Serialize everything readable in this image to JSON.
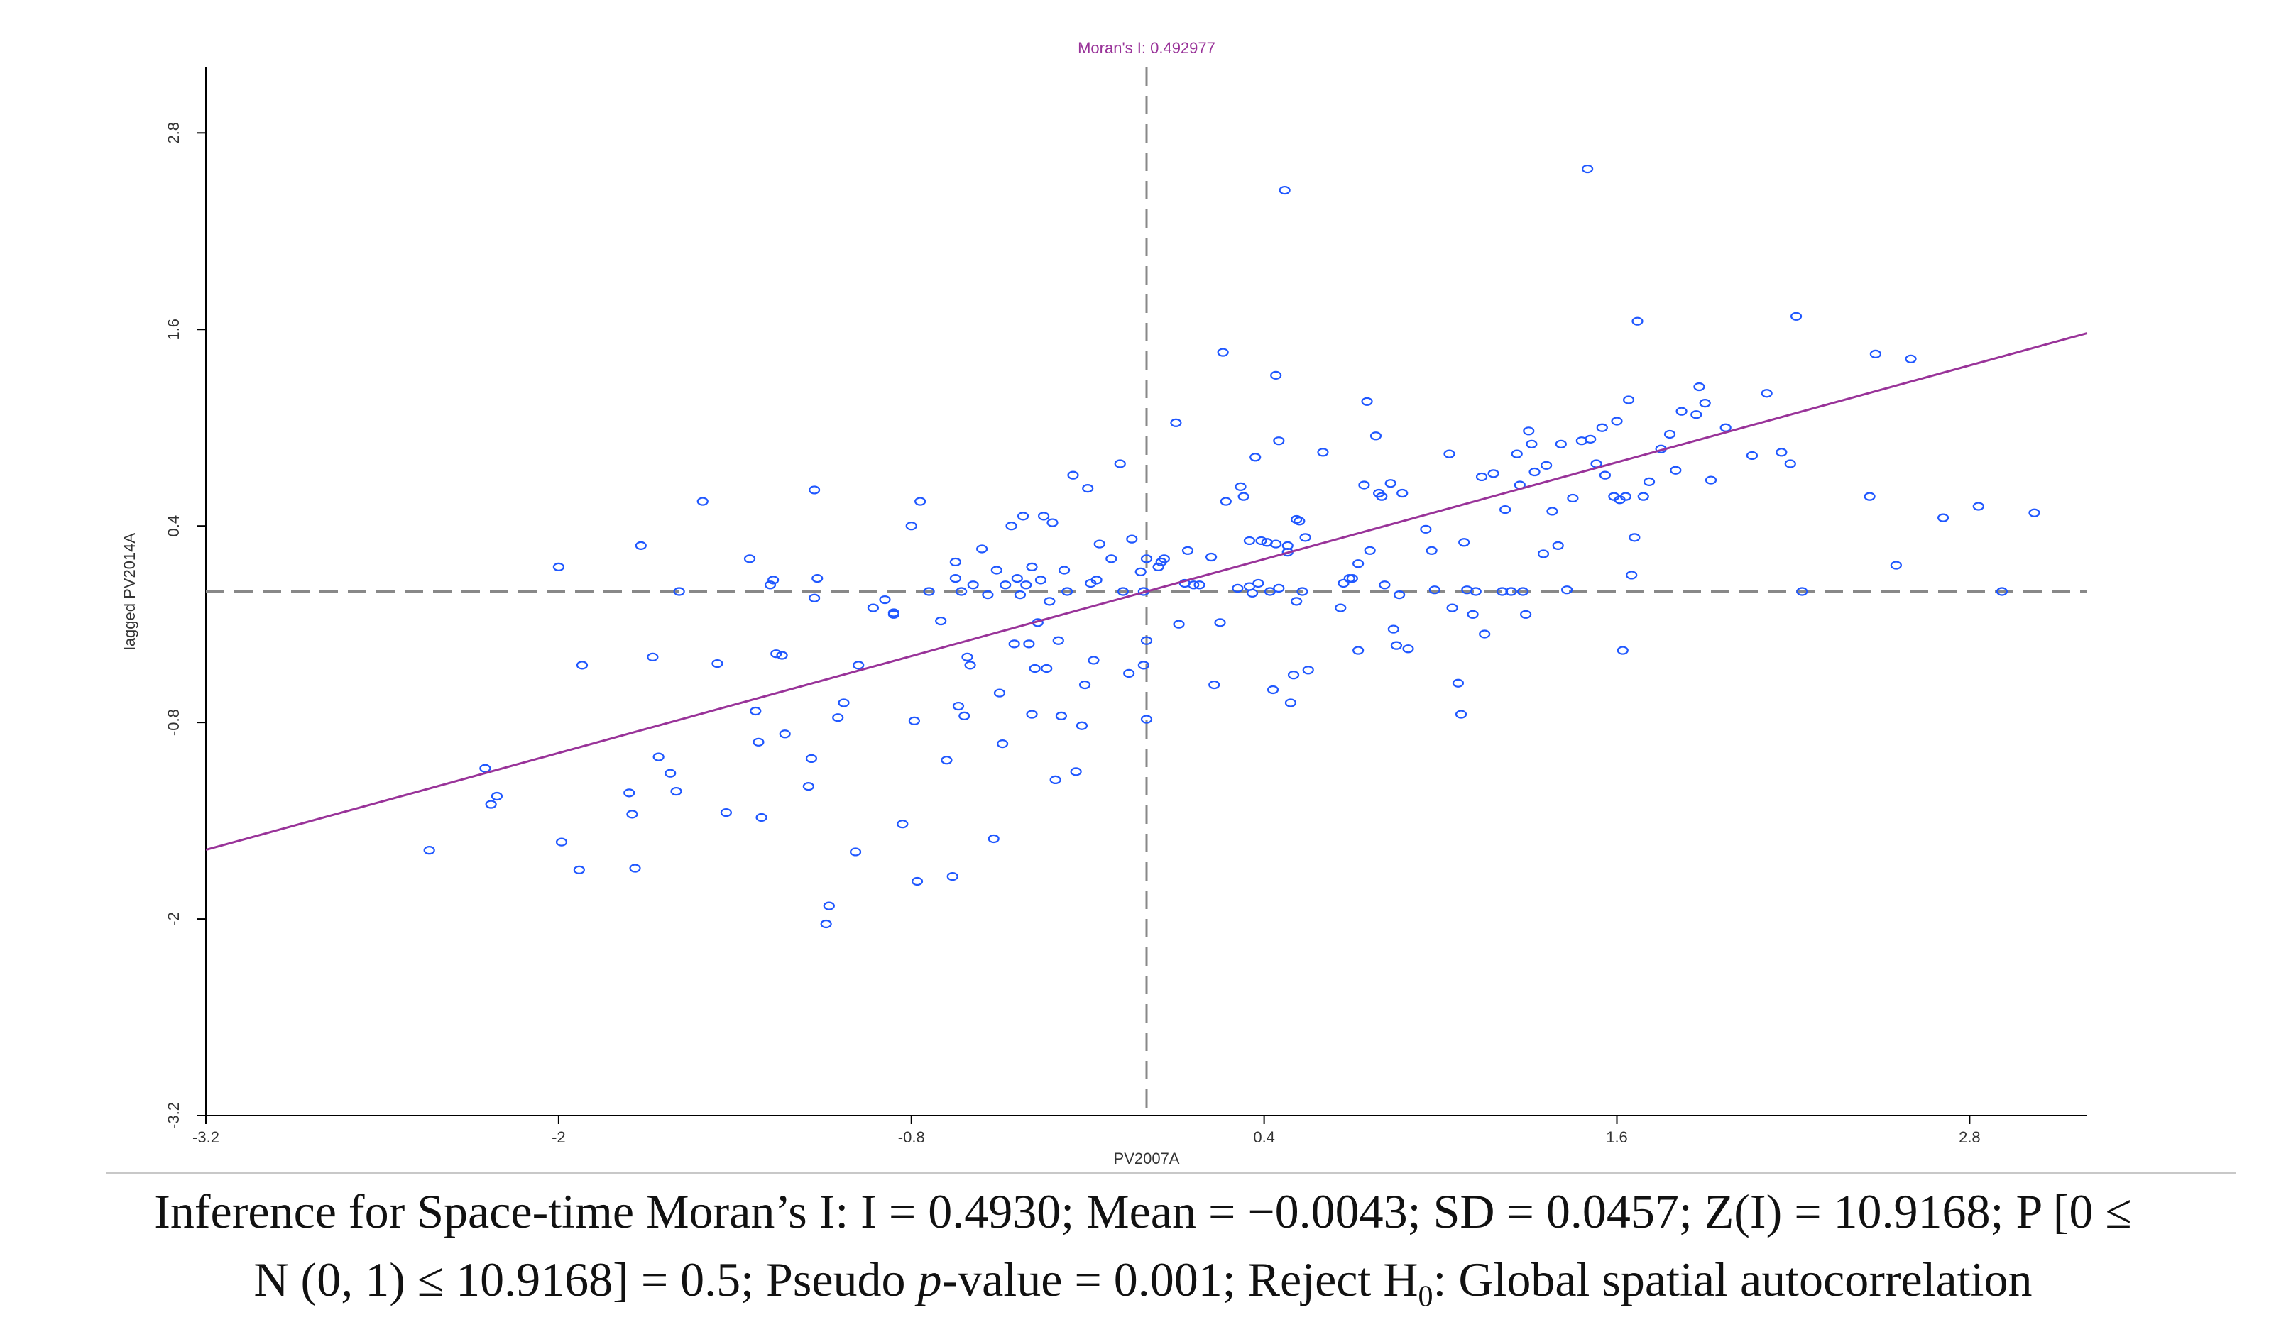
{
  "chart_data": {
    "type": "scatter",
    "title": "Moran's I: 0.492977",
    "xlabel": "PV2007A",
    "ylabel": "lagged PV2014A",
    "xlim": [
      -3.2,
      3.2
    ],
    "ylim": [
      -3.2,
      3.2
    ],
    "x_ticks": [
      "-3.2",
      "-2",
      "-0.8",
      "0.4",
      "1.6",
      "2.8"
    ],
    "y_ticks": [
      "-3.2",
      "-2",
      "-0.8",
      "0.4",
      "1.6",
      "2.8"
    ],
    "mean_x": 0.0,
    "mean_y": 0.0,
    "regression": {
      "slope": 0.493,
      "intercept": 0.0
    },
    "colors": {
      "points": "#1f57ff",
      "line": "#993399",
      "guides": "#888888",
      "axes": "#000000"
    },
    "points": [
      [
        -2.44,
        -1.58
      ],
      [
        -2.25,
        -1.08
      ],
      [
        -2.23,
        -1.3
      ],
      [
        -2.21,
        -1.25
      ],
      [
        -2.0,
        0.15
      ],
      [
        -1.99,
        -1.53
      ],
      [
        -1.93,
        -1.7
      ],
      [
        -1.92,
        -0.45
      ],
      [
        -1.76,
        -1.23
      ],
      [
        -1.75,
        -1.36
      ],
      [
        -1.74,
        -1.69
      ],
      [
        -1.72,
        0.28
      ],
      [
        -1.68,
        -0.4
      ],
      [
        -1.66,
        -1.01
      ],
      [
        -1.62,
        -1.11
      ],
      [
        -1.6,
        -1.22
      ],
      [
        -1.59,
        0.0
      ],
      [
        -1.51,
        0.55
      ],
      [
        -1.46,
        -0.44
      ],
      [
        -1.43,
        -1.35
      ],
      [
        -1.35,
        0.2
      ],
      [
        -1.33,
        -0.73
      ],
      [
        -1.32,
        -0.92
      ],
      [
        -1.31,
        -1.38
      ],
      [
        -1.28,
        0.04
      ],
      [
        -1.27,
        0.07
      ],
      [
        -1.26,
        -0.38
      ],
      [
        -1.24,
        -0.39
      ],
      [
        -1.23,
        -0.87
      ],
      [
        -1.15,
        -1.19
      ],
      [
        -1.14,
        -1.02
      ],
      [
        -1.13,
        0.62
      ],
      [
        -1.13,
        -0.04
      ],
      [
        -1.12,
        0.08
      ],
      [
        -1.09,
        -2.03
      ],
      [
        -1.08,
        -1.92
      ],
      [
        -1.05,
        -0.77
      ],
      [
        -1.03,
        -0.68
      ],
      [
        -0.99,
        -1.59
      ],
      [
        -0.98,
        -0.45
      ],
      [
        -0.93,
        -0.1
      ],
      [
        -0.89,
        -0.05
      ],
      [
        -0.86,
        -0.14
      ],
      [
        -0.86,
        -0.13
      ],
      [
        -0.83,
        -1.42
      ],
      [
        -0.8,
        0.4
      ],
      [
        -0.79,
        -0.79
      ],
      [
        -0.78,
        -1.77
      ],
      [
        -0.77,
        0.55
      ],
      [
        -0.74,
        0.0
      ],
      [
        -0.7,
        -0.18
      ],
      [
        -0.68,
        -1.03
      ],
      [
        -0.66,
        -1.74
      ],
      [
        -0.65,
        0.18
      ],
      [
        -0.65,
        0.08
      ],
      [
        -0.64,
        -0.7
      ],
      [
        -0.63,
        0.0
      ],
      [
        -0.62,
        -0.76
      ],
      [
        -0.61,
        -0.4
      ],
      [
        -0.6,
        -0.45
      ],
      [
        -0.59,
        0.04
      ],
      [
        -0.56,
        0.26
      ],
      [
        -0.54,
        -0.02
      ],
      [
        -0.52,
        -1.51
      ],
      [
        -0.51,
        0.13
      ],
      [
        -0.5,
        -0.62
      ],
      [
        -0.49,
        -0.93
      ],
      [
        -0.48,
        0.04
      ],
      [
        -0.46,
        0.4
      ],
      [
        -0.45,
        -0.32
      ],
      [
        -0.44,
        0.08
      ],
      [
        -0.43,
        -0.02
      ],
      [
        -0.42,
        0.46
      ],
      [
        -0.41,
        0.04
      ],
      [
        -0.4,
        -0.32
      ],
      [
        -0.39,
        -0.75
      ],
      [
        -0.39,
        0.15
      ],
      [
        -0.38,
        -0.47
      ],
      [
        -0.37,
        -0.19
      ],
      [
        -0.36,
        0.07
      ],
      [
        -0.35,
        0.46
      ],
      [
        -0.34,
        -0.47
      ],
      [
        -0.33,
        -0.06
      ],
      [
        -0.32,
        0.42
      ],
      [
        -0.31,
        -1.15
      ],
      [
        -0.3,
        -0.3
      ],
      [
        -0.29,
        -0.76
      ],
      [
        -0.28,
        0.13
      ],
      [
        -0.27,
        0.0
      ],
      [
        -0.25,
        0.71
      ],
      [
        -0.24,
        -1.1
      ],
      [
        -0.22,
        -0.82
      ],
      [
        -0.21,
        -0.57
      ],
      [
        -0.2,
        0.63
      ],
      [
        -0.19,
        0.05
      ],
      [
        -0.18,
        -0.42
      ],
      [
        -0.17,
        0.07
      ],
      [
        -0.16,
        0.29
      ],
      [
        -0.12,
        0.2
      ],
      [
        -0.09,
        0.78
      ],
      [
        -0.08,
        0.0
      ],
      [
        -0.06,
        -0.5
      ],
      [
        -0.05,
        0.32
      ],
      [
        -0.02,
        0.12
      ],
      [
        -0.01,
        0.0
      ],
      [
        -0.01,
        -0.45
      ],
      [
        0.0,
        0.2
      ],
      [
        0.0,
        -0.3
      ],
      [
        0.0,
        -0.78
      ],
      [
        0.04,
        0.15
      ],
      [
        0.05,
        0.18
      ],
      [
        0.06,
        0.2
      ],
      [
        0.1,
        1.03
      ],
      [
        0.11,
        -0.2
      ],
      [
        0.13,
        0.05
      ],
      [
        0.14,
        0.25
      ],
      [
        0.16,
        0.04
      ],
      [
        0.18,
        0.04
      ],
      [
        0.22,
        0.21
      ],
      [
        0.23,
        -0.57
      ],
      [
        0.25,
        -0.19
      ],
      [
        0.26,
        1.46
      ],
      [
        0.27,
        0.55
      ],
      [
        0.31,
        0.02
      ],
      [
        0.32,
        0.64
      ],
      [
        0.33,
        0.58
      ],
      [
        0.35,
        0.03
      ],
      [
        0.35,
        0.31
      ],
      [
        0.36,
        -0.01
      ],
      [
        0.37,
        0.82
      ],
      [
        0.38,
        0.05
      ],
      [
        0.39,
        0.31
      ],
      [
        0.41,
        0.3
      ],
      [
        0.42,
        0.0
      ],
      [
        0.43,
        -0.6
      ],
      [
        0.44,
        1.32
      ],
      [
        0.44,
        0.29
      ],
      [
        0.45,
        0.92
      ],
      [
        0.45,
        0.02
      ],
      [
        0.47,
        2.45
      ],
      [
        0.48,
        0.24
      ],
      [
        0.48,
        0.28
      ],
      [
        0.49,
        -0.68
      ],
      [
        0.5,
        -0.51
      ],
      [
        0.51,
        0.44
      ],
      [
        0.51,
        -0.06
      ],
      [
        0.52,
        0.43
      ],
      [
        0.53,
        0.0
      ],
      [
        0.54,
        0.33
      ],
      [
        0.55,
        -0.48
      ],
      [
        0.6,
        0.85
      ],
      [
        0.66,
        -0.1
      ],
      [
        0.67,
        0.05
      ],
      [
        0.69,
        0.08
      ],
      [
        0.7,
        0.08
      ],
      [
        0.72,
        0.17
      ],
      [
        0.72,
        -0.36
      ],
      [
        0.74,
        0.65
      ],
      [
        0.75,
        1.16
      ],
      [
        0.76,
        0.25
      ],
      [
        0.78,
        0.95
      ],
      [
        0.79,
        0.6
      ],
      [
        0.8,
        0.58
      ],
      [
        0.81,
        0.04
      ],
      [
        0.83,
        0.66
      ],
      [
        0.84,
        -0.23
      ],
      [
        0.85,
        -0.33
      ],
      [
        0.86,
        -0.02
      ],
      [
        0.87,
        0.6
      ],
      [
        0.89,
        -0.35
      ],
      [
        0.95,
        0.38
      ],
      [
        0.97,
        0.25
      ],
      [
        0.98,
        0.01
      ],
      [
        1.03,
        0.84
      ],
      [
        1.04,
        -0.1
      ],
      [
        1.06,
        -0.56
      ],
      [
        1.07,
        -0.75
      ],
      [
        1.08,
        0.3
      ],
      [
        1.09,
        0.01
      ],
      [
        1.11,
        -0.14
      ],
      [
        1.12,
        0.0
      ],
      [
        1.14,
        0.7
      ],
      [
        1.15,
        -0.26
      ],
      [
        1.18,
        0.72
      ],
      [
        1.21,
        0.0
      ],
      [
        1.22,
        0.5
      ],
      [
        1.24,
        0.0
      ],
      [
        1.26,
        0.84
      ],
      [
        1.27,
        0.65
      ],
      [
        1.28,
        0.0
      ],
      [
        1.29,
        -0.14
      ],
      [
        1.3,
        0.98
      ],
      [
        1.31,
        0.9
      ],
      [
        1.32,
        0.73
      ],
      [
        1.35,
        0.23
      ],
      [
        1.36,
        0.77
      ],
      [
        1.38,
        0.49
      ],
      [
        1.4,
        0.28
      ],
      [
        1.41,
        0.9
      ],
      [
        1.43,
        0.01
      ],
      [
        1.45,
        0.57
      ],
      [
        1.48,
        0.92
      ],
      [
        1.5,
        2.58
      ],
      [
        1.51,
        0.93
      ],
      [
        1.53,
        0.78
      ],
      [
        1.55,
        1.0
      ],
      [
        1.56,
        0.71
      ],
      [
        1.59,
        0.58
      ],
      [
        1.6,
        1.04
      ],
      [
        1.61,
        0.56
      ],
      [
        1.62,
        -0.36
      ],
      [
        1.63,
        0.58
      ],
      [
        1.64,
        1.17
      ],
      [
        1.65,
        0.1
      ],
      [
        1.66,
        0.33
      ],
      [
        1.67,
        1.65
      ],
      [
        1.69,
        0.58
      ],
      [
        1.71,
        0.67
      ],
      [
        1.75,
        0.87
      ],
      [
        1.78,
        0.96
      ],
      [
        1.8,
        0.74
      ],
      [
        1.82,
        1.1
      ],
      [
        1.87,
        1.08
      ],
      [
        1.88,
        1.25
      ],
      [
        1.9,
        1.15
      ],
      [
        1.92,
        0.68
      ],
      [
        1.97,
        1.0
      ],
      [
        2.06,
        0.83
      ],
      [
        2.11,
        1.21
      ],
      [
        2.16,
        0.85
      ],
      [
        2.19,
        0.78
      ],
      [
        2.21,
        1.68
      ],
      [
        2.23,
        0.0
      ],
      [
        2.46,
        0.58
      ],
      [
        2.48,
        1.45
      ],
      [
        2.55,
        0.16
      ],
      [
        2.6,
        1.42
      ],
      [
        2.71,
        0.45
      ],
      [
        2.83,
        0.52
      ],
      [
        2.91,
        0.0
      ],
      [
        3.02,
        0.48
      ]
    ]
  },
  "caption": {
    "line1": "Inference for Space-time Moran’s I: I = 0.4930; Mean = −0.0043; SD = 0.0457; Z(I) = 10.9168; P [0 ≤",
    "line2_a": "N (0, 1) ≤ 10.9168] = 0.5; Pseudo ",
    "line2_p": "p",
    "line2_b": "-value = 0.001; Reject H",
    "line2_sub": "0",
    "line2_c": ": Global spatial autocorrelation"
  }
}
